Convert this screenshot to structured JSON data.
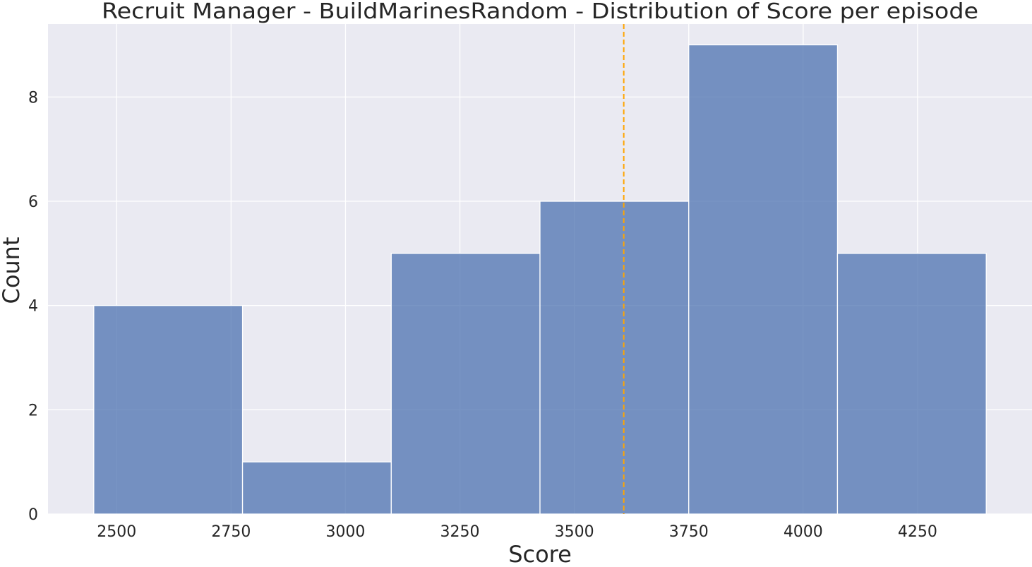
{
  "chart_data": {
    "type": "bar",
    "title": "Recruit Manager - BuildMarinesRandom - Distribution of Score per episode",
    "xlabel": "Score",
    "ylabel": "Count",
    "bin_edges": [
      2450,
      2775,
      3100,
      3425,
      3750,
      4075,
      4400
    ],
    "values": [
      4,
      1,
      5,
      6,
      9,
      5
    ],
    "xlim": [
      2350,
      4500
    ],
    "ylim": [
      0,
      9.4
    ],
    "x_ticks": [
      2500,
      2750,
      3000,
      3250,
      3500,
      3750,
      4000,
      4250
    ],
    "y_ticks": [
      0,
      2,
      4,
      6,
      8
    ],
    "mean_line": {
      "x": 3608,
      "style": "dashed",
      "color": "#ffa500"
    },
    "grid": true,
    "colors": {
      "background": "#eaeaf2",
      "bar_fill": "#4c72b0",
      "bar_opacity": 0.75,
      "bar_edge": "#ffffff",
      "grid": "#ffffff",
      "text": "#262626"
    }
  }
}
